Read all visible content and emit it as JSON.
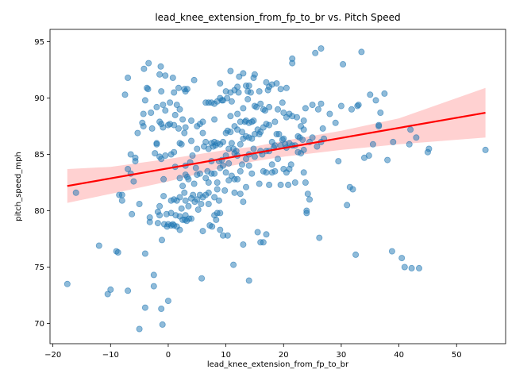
{
  "chart_data": {
    "type": "scatter",
    "title": "lead_knee_extension_from_fp_to_br vs. Pitch Speed",
    "xlabel": "lead_knee_extension_from_fp_to_br",
    "ylabel": "pitch_speed_mph",
    "xlim": [
      -20.5,
      58.5
    ],
    "ylim": [
      68.2,
      96.1
    ],
    "xticks": [
      -20,
      -10,
      0,
      10,
      20,
      30,
      40,
      50
    ],
    "yticks": [
      70,
      75,
      80,
      85,
      90,
      95
    ],
    "grid": false,
    "colors": {
      "points": "#1f77b4",
      "regression_line": "#ff0000",
      "confidence_band": "#ffb3b3"
    },
    "regression": {
      "x": [
        -17.5,
        55
      ],
      "y": [
        82.2,
        88.7
      ]
    },
    "confidence_band": {
      "x": [
        -17.5,
        -10,
        0,
        10,
        15,
        20,
        30,
        40,
        55
      ],
      "upper": [
        83.7,
        83.9,
        84.6,
        85.4,
        85.7,
        86.2,
        87.1,
        88.2,
        90.9
      ],
      "lower": [
        80.7,
        81.5,
        82.6,
        83.9,
        84.4,
        84.8,
        85.4,
        85.9,
        86.5
      ]
    },
    "points": [
      [
        -17.5,
        73.5
      ],
      [
        -16,
        81.6
      ],
      [
        -12,
        76.9
      ],
      [
        -10.5,
        72.6
      ],
      [
        -10,
        73
      ],
      [
        -9,
        76.4
      ],
      [
        -8.7,
        76.3
      ],
      [
        -8.5,
        81.4
      ],
      [
        -8,
        80.9
      ],
      [
        -8,
        81.4
      ],
      [
        -7.5,
        90.3
      ],
      [
        -7,
        91.8
      ],
      [
        -7,
        83.7
      ],
      [
        -7,
        72.9
      ],
      [
        -6.5,
        85
      ],
      [
        -6.5,
        83.3
      ],
      [
        -6.3,
        79.7
      ],
      [
        -6,
        82.6
      ],
      [
        -5.7,
        84.7
      ],
      [
        -5.7,
        84.4
      ],
      [
        -5.3,
        86.9
      ],
      [
        -5,
        80.6
      ],
      [
        -5,
        69.5
      ],
      [
        -4.5,
        87.8
      ],
      [
        -4.3,
        87.5
      ],
      [
        -4.3,
        88.6
      ],
      [
        -4.2,
        92.6
      ],
      [
        -4,
        89.8
      ],
      [
        -4,
        76.2
      ],
      [
        -4,
        71.4
      ],
      [
        -3.7,
        90.9
      ],
      [
        -3.5,
        90.8
      ],
      [
        -3.4,
        93.1
      ],
      [
        -3.2,
        79.4
      ],
      [
        -3.2,
        79
      ],
      [
        -3,
        88.7
      ],
      [
        -2.8,
        87.3
      ],
      [
        -2.5,
        74.3
      ],
      [
        -2.5,
        73.3
      ],
      [
        -2.3,
        85.1
      ],
      [
        -2,
        89.2
      ],
      [
        -2,
        86
      ],
      [
        -2,
        85.9
      ],
      [
        -1.8,
        79.9
      ],
      [
        -1.8,
        78.9
      ],
      [
        -1.5,
        92.1
      ],
      [
        -1.5,
        87.9
      ],
      [
        -1.5,
        84.8
      ],
      [
        -1.5,
        80.4
      ],
      [
        -1.5,
        79.6
      ],
      [
        -1.2,
        71.3
      ],
      [
        -1.3,
        92.8
      ],
      [
        -1.2,
        90.6
      ],
      [
        -1.2,
        87.7
      ],
      [
        -1.2,
        84.6
      ],
      [
        -1.1,
        77.4
      ],
      [
        -1,
        69.9
      ],
      [
        -0.9,
        89.4
      ],
      [
        -0.9,
        87.4
      ],
      [
        -0.8,
        82.8
      ],
      [
        -0.8,
        81.3
      ],
      [
        -0.7,
        78.8
      ],
      [
        -0.5,
        92
      ],
      [
        -0.5,
        88.9
      ],
      [
        -0.5,
        84.9
      ],
      [
        -0.3,
        79.7
      ],
      [
        -0.2,
        78.6
      ],
      [
        0,
        72
      ],
      [
        0,
        78.8
      ],
      [
        0,
        87.6
      ],
      [
        0.3,
        89.6
      ],
      [
        0.3,
        87.7
      ],
      [
        0.5,
        85
      ],
      [
        0.5,
        80.9
      ],
      [
        0.5,
        79.8
      ],
      [
        0.5,
        78.7
      ],
      [
        0.8,
        91.8
      ],
      [
        0.8,
        78.8
      ],
      [
        1,
        90.5
      ],
      [
        1,
        87.6
      ],
      [
        1,
        85.2
      ],
      [
        1,
        81
      ],
      [
        1,
        78.7
      ],
      [
        1.2,
        88.5
      ],
      [
        1.2,
        83.9
      ],
      [
        1.3,
        79.6
      ],
      [
        1.5,
        89.4
      ],
      [
        1.5,
        80.9
      ],
      [
        1.5,
        78.6
      ],
      [
        1.8,
        90.9
      ],
      [
        1.8,
        87.3
      ],
      [
        2,
        89
      ],
      [
        2,
        86
      ],
      [
        2,
        82.9
      ],
      [
        2,
        81.2
      ],
      [
        2,
        79.5
      ],
      [
        2,
        78.3
      ],
      [
        2.3,
        85.9
      ],
      [
        2.3,
        80.2
      ],
      [
        2.5,
        88.1
      ],
      [
        2.5,
        82.2
      ],
      [
        2.5,
        79.2
      ],
      [
        2.8,
        90.8
      ],
      [
        2.8,
        86.9
      ],
      [
        2.8,
        81.6
      ],
      [
        2.9,
        79.2
      ],
      [
        3,
        90.6
      ],
      [
        3,
        87.4
      ],
      [
        3,
        84
      ],
      [
        3,
        83.2
      ],
      [
        3,
        80.9
      ],
      [
        3,
        79.6
      ],
      [
        3.2,
        79.1
      ],
      [
        3.3,
        90.8
      ],
      [
        3.3,
        83
      ],
      [
        3.5,
        82.8
      ],
      [
        3.5,
        80.4
      ],
      [
        3.6,
        79.3
      ],
      [
        3.8,
        84.3
      ],
      [
        4,
        88
      ],
      [
        4,
        86.2
      ],
      [
        4,
        81.1
      ],
      [
        4,
        79.3
      ],
      [
        4.2,
        84.9
      ],
      [
        4.3,
        81.4
      ],
      [
        4.5,
        91.6
      ],
      [
        4.5,
        82.4
      ],
      [
        4.6,
        80.8
      ],
      [
        4.8,
        83.8
      ],
      [
        5,
        87.5
      ],
      [
        5,
        85.5
      ],
      [
        5,
        83.2
      ],
      [
        5,
        81
      ],
      [
        5.2,
        80.1
      ],
      [
        5.5,
        87.7
      ],
      [
        5.5,
        83.3
      ],
      [
        5.5,
        81.4
      ],
      [
        5.7,
        80.6
      ],
      [
        5.8,
        74
      ],
      [
        6,
        87.9
      ],
      [
        6,
        86.9
      ],
      [
        6,
        81.2
      ],
      [
        6,
        78.2
      ],
      [
        6.2,
        85.7
      ],
      [
        6.5,
        89.6
      ],
      [
        6.5,
        86.1
      ],
      [
        6.5,
        82.9
      ],
      [
        6.5,
        81.4
      ],
      [
        6.8,
        83.5
      ],
      [
        7,
        89.6
      ],
      [
        7,
        85.5
      ],
      [
        7,
        82.5
      ],
      [
        7,
        81.6
      ],
      [
        7,
        80.6
      ],
      [
        7.2,
        78.7
      ],
      [
        7.5,
        89.6
      ],
      [
        7.5,
        86
      ],
      [
        7.5,
        84.4
      ],
      [
        7.5,
        83.3
      ],
      [
        7.6,
        78.6
      ],
      [
        7.8,
        85.7
      ],
      [
        8,
        89.5
      ],
      [
        8,
        88.1
      ],
      [
        8,
        86.1
      ],
      [
        8,
        83.3
      ],
      [
        8,
        81.2
      ],
      [
        8,
        79.6
      ],
      [
        8.2,
        85.8
      ],
      [
        8.3,
        79.2
      ],
      [
        8.5,
        89.7
      ],
      [
        8.5,
        86
      ],
      [
        8.5,
        82.5
      ],
      [
        8.5,
        81.9
      ],
      [
        8.5,
        79.8
      ],
      [
        8.8,
        84.4
      ],
      [
        8.8,
        80.9
      ],
      [
        9,
        91.3
      ],
      [
        9,
        90
      ],
      [
        9,
        85.9
      ],
      [
        9,
        83.8
      ],
      [
        9,
        79.8
      ],
      [
        9,
        78.3
      ],
      [
        9.3,
        89.8
      ],
      [
        9.3,
        84.5
      ],
      [
        9.5,
        89.8
      ],
      [
        9.5,
        86.1
      ],
      [
        9.5,
        84
      ],
      [
        9.5,
        77.8
      ],
      [
        9.8,
        81.8
      ],
      [
        10,
        90.6
      ],
      [
        10,
        86.9
      ],
      [
        10,
        84.9
      ],
      [
        10,
        83.4
      ],
      [
        10.2,
        90
      ],
      [
        10.3,
        87.1
      ],
      [
        10.3,
        77.8
      ],
      [
        10.5,
        85.5
      ],
      [
        10.5,
        84.2
      ],
      [
        10.5,
        82.7
      ],
      [
        10.8,
        92.4
      ],
      [
        10.8,
        90.5
      ],
      [
        10.8,
        88.4
      ],
      [
        10.8,
        87
      ],
      [
        11,
        89.7
      ],
      [
        11,
        86
      ],
      [
        11,
        83.1
      ],
      [
        11.3,
        85.5
      ],
      [
        11.3,
        75.2
      ],
      [
        11.5,
        90.7
      ],
      [
        11.5,
        87.5
      ],
      [
        11.5,
        85.1
      ],
      [
        11.5,
        82.8
      ],
      [
        11.5,
        81.6
      ],
      [
        11.8,
        85.3
      ],
      [
        12,
        91
      ],
      [
        12,
        88.6
      ],
      [
        12,
        87.2
      ],
      [
        12,
        84.9
      ],
      [
        12,
        82.8
      ],
      [
        12.2,
        90.5
      ],
      [
        12.3,
        91.9
      ],
      [
        12.5,
        87.9
      ],
      [
        12.5,
        85.9
      ],
      [
        12.5,
        83.5
      ],
      [
        12.5,
        81.5
      ],
      [
        12.8,
        87
      ],
      [
        12.8,
        84.1
      ],
      [
        13,
        92.2
      ],
      [
        13,
        89.1
      ],
      [
        13,
        86.4
      ],
      [
        13,
        80.8
      ],
      [
        13,
        77
      ],
      [
        13.3,
        87.9
      ],
      [
        13.5,
        91.1
      ],
      [
        13.5,
        88
      ],
      [
        13.5,
        86.6
      ],
      [
        13.5,
        84.6
      ],
      [
        13.5,
        82.1
      ],
      [
        13.8,
        90.6
      ],
      [
        13.8,
        89.9
      ],
      [
        14,
        91.1
      ],
      [
        14,
        87.8
      ],
      [
        14,
        86.5
      ],
      [
        14,
        85
      ],
      [
        14,
        84
      ],
      [
        14,
        73.8
      ],
      [
        14.3,
        90.5
      ],
      [
        14.5,
        87.9
      ],
      [
        14.5,
        86.4
      ],
      [
        14.5,
        83.3
      ],
      [
        14.8,
        91.8
      ],
      [
        14.8,
        88
      ],
      [
        14.8,
        85.5
      ],
      [
        15,
        92.1
      ],
      [
        15,
        89.3
      ],
      [
        15,
        86.8
      ],
      [
        15,
        84.8
      ],
      [
        15.3,
        89.2
      ],
      [
        15.5,
        87.2
      ],
      [
        15.5,
        78.1
      ],
      [
        15.8,
        90.6
      ],
      [
        15.8,
        86.8
      ],
      [
        15.8,
        82.4
      ],
      [
        16,
        89.5
      ],
      [
        16,
        87
      ],
      [
        16,
        85.3
      ],
      [
        16,
        77.2
      ],
      [
        16.3,
        85
      ],
      [
        16.5,
        89
      ],
      [
        16.5,
        87.4
      ],
      [
        16.5,
        83.5
      ],
      [
        16.5,
        77.2
      ],
      [
        16.8,
        88.9
      ],
      [
        17,
        91.4
      ],
      [
        17,
        87.7
      ],
      [
        17,
        85.3
      ],
      [
        17,
        83.4
      ],
      [
        17,
        77.9
      ],
      [
        17.3,
        90.7
      ],
      [
        17.5,
        91
      ],
      [
        17.5,
        89.2
      ],
      [
        17.5,
        87.6
      ],
      [
        17.5,
        85.3
      ],
      [
        17.5,
        82.3
      ],
      [
        18,
        91.2
      ],
      [
        18,
        86.1
      ],
      [
        18,
        84.1
      ],
      [
        18,
        83.4
      ],
      [
        18.3,
        85.6
      ],
      [
        18.5,
        87.9
      ],
      [
        18.5,
        85.8
      ],
      [
        18.5,
        83.5
      ],
      [
        18.8,
        91.3
      ],
      [
        18.8,
        86.8
      ],
      [
        19,
        89
      ],
      [
        19,
        84.6
      ],
      [
        19.2,
        86.8
      ],
      [
        19.5,
        90.8
      ],
      [
        19.5,
        85.8
      ],
      [
        19.5,
        82.3
      ],
      [
        19.8,
        89.6
      ],
      [
        19.8,
        86.3
      ],
      [
        20,
        88.7
      ],
      [
        20,
        86.4
      ],
      [
        20,
        83.7
      ],
      [
        20.3,
        85.9
      ],
      [
        20.5,
        90.9
      ],
      [
        20.5,
        88.3
      ],
      [
        20.5,
        85.6
      ],
      [
        20.5,
        83.4
      ],
      [
        20.8,
        82.3
      ],
      [
        21,
        88.6
      ],
      [
        21,
        86
      ],
      [
        21,
        83.7
      ],
      [
        21.3,
        84.1
      ],
      [
        21.5,
        93.5
      ],
      [
        21.5,
        93.1
      ],
      [
        21.5,
        88.4
      ],
      [
        21.5,
        85.8
      ],
      [
        22,
        85.8
      ],
      [
        22,
        82.5
      ],
      [
        22.3,
        88.3
      ],
      [
        22.5,
        86.6
      ],
      [
        22.5,
        85.2
      ],
      [
        22.8,
        86.5
      ],
      [
        23,
        87.5
      ],
      [
        23,
        85.1
      ],
      [
        23.3,
        86.3
      ],
      [
        23.5,
        88
      ],
      [
        23.5,
        87.2
      ],
      [
        23.5,
        85.4
      ],
      [
        23.5,
        83.4
      ],
      [
        23.8,
        89.1
      ],
      [
        23.8,
        82.5
      ],
      [
        24,
        80
      ],
      [
        24,
        79.8
      ],
      [
        24.2,
        81.5
      ],
      [
        24.5,
        86.1
      ],
      [
        24.5,
        81
      ],
      [
        25,
        89.4
      ],
      [
        25,
        86.5
      ],
      [
        25.5,
        94
      ],
      [
        25.8,
        85.7
      ],
      [
        26,
        89
      ],
      [
        26.2,
        77.6
      ],
      [
        26.5,
        94.4
      ],
      [
        26.5,
        89.5
      ],
      [
        26.5,
        86.1
      ],
      [
        26.8,
        87.3
      ],
      [
        27,
        86.4
      ],
      [
        28,
        88.6
      ],
      [
        29,
        87.8
      ],
      [
        29.5,
        84.4
      ],
      [
        30,
        89.3
      ],
      [
        30.3,
        93
      ],
      [
        31,
        80.5
      ],
      [
        31.5,
        82.1
      ],
      [
        31.8,
        89
      ],
      [
        32,
        81.9
      ],
      [
        32.5,
        76.1
      ],
      [
        32.8,
        89.3
      ],
      [
        33,
        89.4
      ],
      [
        33.5,
        94.1
      ],
      [
        34,
        84.7
      ],
      [
        34.8,
        84.9
      ],
      [
        35,
        90.3
      ],
      [
        35.5,
        85.9
      ],
      [
        36,
        89.8
      ],
      [
        36.5,
        87.5
      ],
      [
        36.5,
        87.6
      ],
      [
        36.8,
        88.7
      ],
      [
        37.5,
        90.4
      ],
      [
        38,
        84.5
      ],
      [
        38.8,
        76.4
      ],
      [
        39,
        86.1
      ],
      [
        40.5,
        75.8
      ],
      [
        41,
        75
      ],
      [
        41.8,
        85.9
      ],
      [
        42,
        87.2
      ],
      [
        42.2,
        74.9
      ],
      [
        43,
        86.5
      ],
      [
        43.5,
        74.9
      ],
      [
        45,
        85.2
      ],
      [
        45.2,
        85.5
      ],
      [
        55,
        85.4
      ]
    ]
  }
}
